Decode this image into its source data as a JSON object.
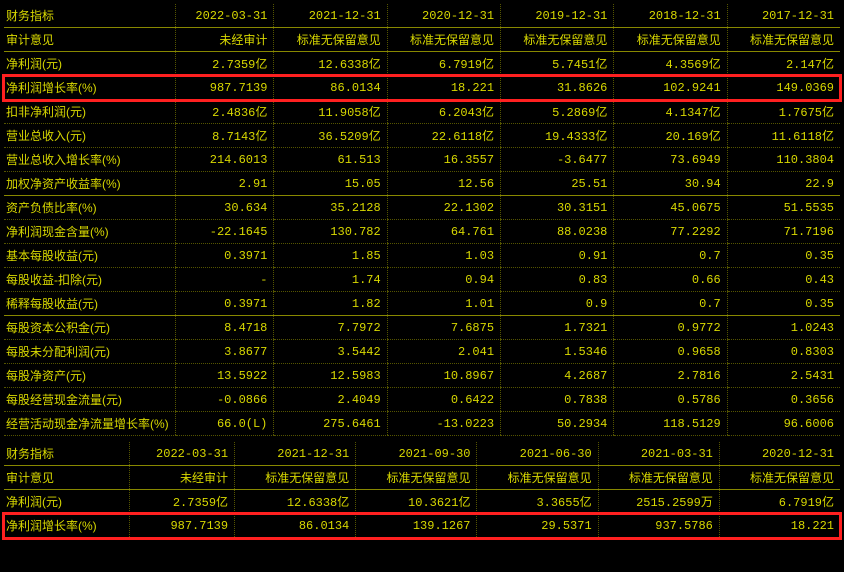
{
  "table1": {
    "headerLabel": "财务指标",
    "dates": [
      "2022-03-31",
      "2021-12-31",
      "2020-12-31",
      "2019-12-31",
      "2018-12-31",
      "2017-12-31"
    ],
    "auditLabel": "审计意见",
    "audit": [
      "未经审计",
      "标准无保留意见",
      "标准无保留意见",
      "标准无保留意见",
      "标准无保留意见",
      "标准无保留意见"
    ],
    "rows1": [
      {
        "label": "净利润(元)",
        "vals": [
          "2.7359亿",
          "12.6338亿",
          "6.7919亿",
          "5.7451亿",
          "4.3569亿",
          "2.147亿"
        ]
      },
      {
        "label": "净利润增长率(%)",
        "vals": [
          "987.7139",
          "86.0134",
          "18.221",
          "31.8626",
          "102.9241",
          "149.0369"
        ],
        "highlight": true
      },
      {
        "label": "扣非净利润(元)",
        "vals": [
          "2.4836亿",
          "11.9058亿",
          "6.2043亿",
          "5.2869亿",
          "4.1347亿",
          "1.7675亿"
        ]
      },
      {
        "label": "营业总收入(元)",
        "vals": [
          "8.7143亿",
          "36.5209亿",
          "22.6118亿",
          "19.4333亿",
          "20.169亿",
          "11.6118亿"
        ]
      },
      {
        "label": "营业总收入增长率(%)",
        "vals": [
          "214.6013",
          "61.513",
          "16.3557",
          "-3.6477",
          "73.6949",
          "110.3804"
        ]
      },
      {
        "label": "加权净资产收益率(%)",
        "vals": [
          "2.91",
          "15.05",
          "12.56",
          "25.51",
          "30.94",
          "22.9"
        ]
      }
    ],
    "rows2": [
      {
        "label": "资产负债比率(%)",
        "vals": [
          "30.634",
          "35.2128",
          "22.1302",
          "30.3151",
          "45.0675",
          "51.5535"
        ]
      },
      {
        "label": "净利润现金含量(%)",
        "vals": [
          "-22.1645",
          "130.782",
          "64.761",
          "88.0238",
          "77.2292",
          "71.7196"
        ]
      },
      {
        "label": "基本每股收益(元)",
        "vals": [
          "0.3971",
          "1.85",
          "1.03",
          "0.91",
          "0.7",
          "0.35"
        ]
      },
      {
        "label": "每股收益-扣除(元)",
        "vals": [
          "-",
          "1.74",
          "0.94",
          "0.83",
          "0.66",
          "0.43"
        ]
      },
      {
        "label": "稀释每股收益(元)",
        "vals": [
          "0.3971",
          "1.82",
          "1.01",
          "0.9",
          "0.7",
          "0.35"
        ]
      }
    ],
    "rows3": [
      {
        "label": "每股资本公积金(元)",
        "vals": [
          "8.4718",
          "7.7972",
          "7.6875",
          "1.7321",
          "0.9772",
          "1.0243"
        ]
      },
      {
        "label": "每股未分配利润(元)",
        "vals": [
          "3.8677",
          "3.5442",
          "2.041",
          "1.5346",
          "0.9658",
          "0.8303"
        ]
      },
      {
        "label": "每股净资产(元)",
        "vals": [
          "13.5922",
          "12.5983",
          "10.8967",
          "4.2687",
          "2.7816",
          "2.5431"
        ]
      },
      {
        "label": "每股经营现金流量(元)",
        "vals": [
          "-0.0866",
          "2.4049",
          "0.6422",
          "0.7838",
          "0.5786",
          "0.3656"
        ]
      },
      {
        "label": "经营活动现金净流量增长率(%)",
        "vals": [
          "66.0(L)",
          "275.6461",
          "-13.0223",
          "50.2934",
          "118.5129",
          "96.6006"
        ]
      }
    ]
  },
  "table2": {
    "headerLabel": "财务指标",
    "dates": [
      "2022-03-31",
      "2021-12-31",
      "2021-09-30",
      "2021-06-30",
      "2021-03-31",
      "2020-12-31"
    ],
    "auditLabel": "审计意见",
    "audit": [
      "未经审计",
      "标准无保留意见",
      "标准无保留意见",
      "标准无保留意见",
      "标准无保留意见",
      "标准无保留意见"
    ],
    "rows1": [
      {
        "label": "净利润(元)",
        "vals": [
          "2.7359亿",
          "12.6338亿",
          "10.3621亿",
          "3.3655亿",
          "2515.2599万",
          "6.7919亿"
        ]
      },
      {
        "label": "净利润增长率(%)",
        "vals": [
          "987.7139",
          "86.0134",
          "139.1267",
          "29.5371",
          "937.5786",
          "18.221"
        ],
        "highlight": true
      }
    ]
  },
  "colors": {
    "bg": "#000000",
    "text": "#d8d800",
    "border": "#555500",
    "highlight": "#ff2020"
  }
}
